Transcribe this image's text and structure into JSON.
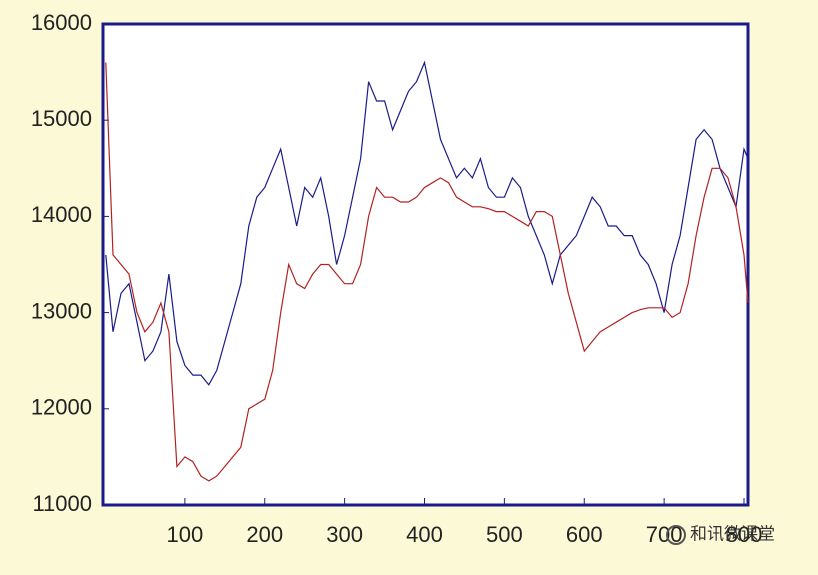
{
  "chart_data": {
    "type": "line",
    "x": [
      1,
      10,
      20,
      30,
      40,
      50,
      60,
      70,
      80,
      90,
      100,
      110,
      120,
      130,
      140,
      150,
      160,
      170,
      180,
      190,
      200,
      210,
      220,
      230,
      240,
      250,
      260,
      270,
      280,
      290,
      300,
      310,
      320,
      330,
      340,
      350,
      360,
      370,
      380,
      390,
      400,
      410,
      420,
      430,
      440,
      450,
      460,
      470,
      480,
      490,
      500,
      510,
      520,
      530,
      540,
      550,
      560,
      570,
      580,
      590,
      600,
      610,
      620,
      630,
      640,
      650,
      660,
      670,
      680,
      690,
      700,
      710,
      720,
      730,
      740,
      750,
      760,
      770,
      780,
      790,
      800,
      805
    ],
    "series": [
      {
        "color": "#1a1a8c",
        "values": [
          13600,
          12800,
          13200,
          13300,
          12900,
          12500,
          12600,
          12800,
          13400,
          12700,
          12450,
          12350,
          12350,
          12250,
          12400,
          12700,
          13000,
          13300,
          13900,
          14200,
          14300,
          14500,
          14700,
          14300,
          13900,
          14300,
          14200,
          14400,
          14000,
          13500,
          13800,
          14200,
          14600,
          15400,
          15200,
          15200,
          14900,
          15100,
          15300,
          15400,
          15600,
          15200,
          14800,
          14600,
          14400,
          14500,
          14400,
          14600,
          14300,
          14200,
          14200,
          14400,
          14300,
          14000,
          13800,
          13600,
          13300,
          13600,
          13700,
          13800,
          14000,
          14200,
          14100,
          13900,
          13900,
          13800,
          13800,
          13600,
          13500,
          13300,
          13000,
          13500,
          13800,
          14300,
          14800,
          14900,
          14800,
          14500,
          14300,
          14100,
          14700,
          14600
        ]
      },
      {
        "color": "#b22222",
        "values": [
          15600,
          13600,
          13500,
          13400,
          13000,
          12800,
          12900,
          13100,
          12800,
          11400,
          11500,
          11450,
          11300,
          11250,
          11300,
          11400,
          11500,
          11600,
          12000,
          12050,
          12100,
          12400,
          13000,
          13500,
          13300,
          13250,
          13400,
          13500,
          13500,
          13400,
          13300,
          13300,
          13500,
          14000,
          14300,
          14200,
          14200,
          14150,
          14150,
          14200,
          14300,
          14350,
          14400,
          14350,
          14200,
          14150,
          14100,
          14100,
          14080,
          14050,
          14050,
          14000,
          13950,
          13900,
          14050,
          14050,
          14000,
          13600,
          13200,
          12900,
          12600,
          12700,
          12800,
          12850,
          12900,
          12950,
          13000,
          13030,
          13050,
          13050,
          13050,
          12950,
          13000,
          13300,
          13800,
          14200,
          14500,
          14500,
          14400,
          14100,
          13600,
          13100
        ]
      }
    ],
    "xlim": [
      0,
      805
    ],
    "ylim": [
      11000,
      16000
    ],
    "xticks": [
      100,
      200,
      300,
      400,
      500,
      600,
      700,
      800
    ],
    "yticks": [
      11000,
      12000,
      13000,
      14000,
      15000,
      16000
    ]
  },
  "watermark": "和讯微课堂"
}
